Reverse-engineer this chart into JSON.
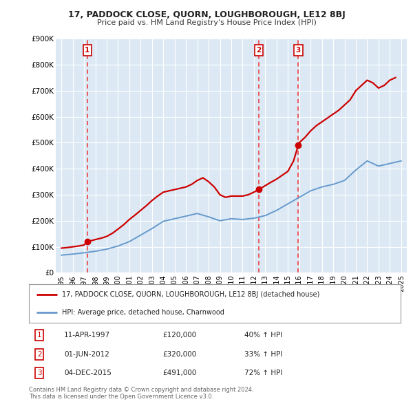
{
  "title": "17, PADDOCK CLOSE, QUORN, LOUGHBOROUGH, LE12 8BJ",
  "subtitle": "Price paid vs. HM Land Registry's House Price Index (HPI)",
  "red_label": "17, PADDOCK CLOSE, QUORN, LOUGHBOROUGH, LE12 8BJ (detached house)",
  "blue_label": "HPI: Average price, detached house, Charnwood",
  "footer1": "Contains HM Land Registry data © Crown copyright and database right 2024.",
  "footer2": "This data is licensed under the Open Government Licence v3.0.",
  "sales": [
    {
      "num": 1,
      "date": "11-APR-1997",
      "price": 120000,
      "pct": "40%",
      "dir": "↑",
      "year": 1997.28
    },
    {
      "num": 2,
      "date": "01-JUN-2012",
      "price": 320000,
      "pct": "33%",
      "dir": "↑",
      "year": 2012.42
    },
    {
      "num": 3,
      "date": "04-DEC-2015",
      "price": 491000,
      "pct": "72%",
      "dir": "↑",
      "year": 2015.92
    }
  ],
  "hpi_years": [
    1995,
    1996,
    1997,
    1998,
    1999,
    2000,
    2001,
    2002,
    2003,
    2004,
    2005,
    2006,
    2007,
    2008,
    2009,
    2010,
    2011,
    2012,
    2013,
    2014,
    2015,
    2016,
    2017,
    2018,
    2019,
    2020,
    2021,
    2022,
    2023,
    2024,
    2025
  ],
  "hpi_values": [
    68000,
    72000,
    77000,
    83000,
    91000,
    103000,
    120000,
    145000,
    170000,
    198000,
    208000,
    218000,
    228000,
    215000,
    200000,
    208000,
    205000,
    210000,
    220000,
    240000,
    265000,
    290000,
    315000,
    330000,
    340000,
    355000,
    395000,
    430000,
    410000,
    420000,
    430000
  ],
  "red_years": [
    1995.0,
    1995.5,
    1996.0,
    1996.5,
    1997.0,
    1997.28,
    1997.5,
    1998.0,
    1998.5,
    1999.0,
    1999.5,
    2000.0,
    2000.5,
    2001.0,
    2001.5,
    2002.0,
    2002.5,
    2003.0,
    2003.5,
    2004.0,
    2004.5,
    2005.0,
    2005.5,
    2006.0,
    2006.5,
    2007.0,
    2007.5,
    2008.0,
    2008.5,
    2009.0,
    2009.5,
    2010.0,
    2010.5,
    2011.0,
    2011.5,
    2012.0,
    2012.42,
    2012.5,
    2013.0,
    2013.5,
    2014.0,
    2014.5,
    2015.0,
    2015.5,
    2015.92,
    2016.0,
    2016.5,
    2017.0,
    2017.5,
    2018.0,
    2018.5,
    2019.0,
    2019.5,
    2020.0,
    2020.5,
    2021.0,
    2021.5,
    2022.0,
    2022.5,
    2023.0,
    2023.5,
    2024.0,
    2024.5
  ],
  "red_values": [
    95000,
    97000,
    100000,
    103000,
    107000,
    120000,
    122000,
    128000,
    133000,
    140000,
    152000,
    168000,
    185000,
    205000,
    222000,
    240000,
    258000,
    278000,
    295000,
    310000,
    315000,
    320000,
    325000,
    330000,
    340000,
    355000,
    365000,
    350000,
    330000,
    300000,
    290000,
    295000,
    295000,
    295000,
    300000,
    310000,
    320000,
    322000,
    335000,
    348000,
    360000,
    375000,
    390000,
    430000,
    491000,
    500000,
    520000,
    545000,
    565000,
    580000,
    595000,
    610000,
    625000,
    645000,
    665000,
    700000,
    720000,
    740000,
    730000,
    710000,
    720000,
    740000,
    750000
  ],
  "ylim": [
    0,
    900000
  ],
  "xlim": [
    1994.5,
    2025.5
  ],
  "yticks": [
    0,
    100000,
    200000,
    300000,
    400000,
    500000,
    600000,
    700000,
    800000,
    900000
  ],
  "ytick_labels": [
    "£0",
    "£100K",
    "£200K",
    "£300K",
    "£400K",
    "£500K",
    "£600K",
    "£700K",
    "£800K",
    "£900K"
  ],
  "xticks": [
    1995,
    1996,
    1997,
    1998,
    1999,
    2000,
    2001,
    2002,
    2003,
    2004,
    2005,
    2006,
    2007,
    2008,
    2009,
    2010,
    2011,
    2012,
    2013,
    2014,
    2015,
    2016,
    2017,
    2018,
    2019,
    2020,
    2021,
    2022,
    2023,
    2024,
    2025
  ],
  "bg_color": "#dce9f5",
  "grid_color": "#ffffff",
  "red_color": "#cc0000",
  "blue_color": "#6699cc",
  "dashed_color": "#ee3333",
  "box_color": "#cc0000"
}
